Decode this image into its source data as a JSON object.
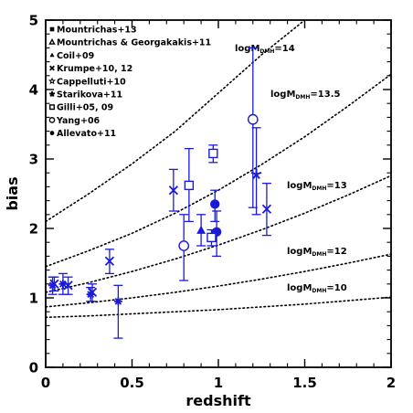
{
  "chart_data": {
    "type": "scatter",
    "xlabel": "redshift",
    "ylabel": "bias",
    "xlim": [
      0,
      2
    ],
    "ylim": [
      0,
      5
    ],
    "x_ticks": [
      "0",
      "0.5",
      "1",
      "1.5",
      "2"
    ],
    "y_ticks": [
      "0",
      "1",
      "2",
      "3",
      "4",
      "5"
    ],
    "legend_position": "top-left",
    "legend": [
      {
        "label": "Mountrichas+13",
        "marker": "filled-square"
      },
      {
        "label": "Mountrichas & Georgakakis+11",
        "marker": "open-triangle"
      },
      {
        "label": "Coil+09",
        "marker": "filled-triangle"
      },
      {
        "label": "Krumpe+10, 12",
        "marker": "x-cross"
      },
      {
        "label": "Cappelluti+10",
        "marker": "open-star"
      },
      {
        "label": "Starikova+11",
        "marker": "star"
      },
      {
        "label": "Gilli+05, 09",
        "marker": "open-square"
      },
      {
        "label": "Yang+06",
        "marker": "open-circle"
      },
      {
        "label": "Allevato+11",
        "marker": "asterisk"
      }
    ],
    "halo_mass_curves": [
      {
        "label": "logM",
        "sub": "DMH",
        "suffix": "=14",
        "points": [
          [
            0,
            2.1
          ],
          [
            0.25,
            2.5
          ],
          [
            0.5,
            2.93
          ],
          [
            0.75,
            3.4
          ],
          [
            1.0,
            3.95
          ],
          [
            1.25,
            4.5
          ],
          [
            1.5,
            5.0
          ]
        ]
      },
      {
        "label": "logM",
        "sub": "DMH",
        "suffix": "=13.5",
        "points": [
          [
            0,
            1.45
          ],
          [
            0.25,
            1.68
          ],
          [
            0.5,
            1.93
          ],
          [
            0.75,
            2.22
          ],
          [
            1.0,
            2.55
          ],
          [
            1.25,
            2.92
          ],
          [
            1.5,
            3.32
          ],
          [
            1.75,
            3.76
          ],
          [
            2.0,
            4.22
          ]
        ]
      },
      {
        "label": "logM",
        "sub": "DMH",
        "suffix": "=13",
        "points": [
          [
            0,
            1.08
          ],
          [
            0.25,
            1.22
          ],
          [
            0.5,
            1.38
          ],
          [
            0.75,
            1.56
          ],
          [
            1.0,
            1.76
          ],
          [
            1.25,
            1.98
          ],
          [
            1.5,
            2.22
          ],
          [
            1.75,
            2.48
          ],
          [
            2.0,
            2.76
          ]
        ]
      },
      {
        "label": "logM",
        "sub": "DMH",
        "suffix": "=12",
        "points": [
          [
            0,
            0.87
          ],
          [
            0.25,
            0.93
          ],
          [
            0.5,
            1.0
          ],
          [
            0.75,
            1.08
          ],
          [
            1.0,
            1.17
          ],
          [
            1.25,
            1.27
          ],
          [
            1.5,
            1.38
          ],
          [
            1.75,
            1.5
          ],
          [
            2.0,
            1.63
          ]
        ]
      },
      {
        "label": "logM",
        "sub": "DMH",
        "suffix": "=10",
        "points": [
          [
            0,
            0.72
          ],
          [
            0.25,
            0.74
          ],
          [
            0.5,
            0.77
          ],
          [
            0.75,
            0.8
          ],
          [
            1.0,
            0.83
          ],
          [
            1.25,
            0.87
          ],
          [
            1.5,
            0.91
          ],
          [
            1.75,
            0.96
          ],
          [
            2.0,
            1.01
          ]
        ]
      }
    ],
    "series": [
      {
        "name": "Mountrichas+13",
        "points": [
          {
            "x": 0.98,
            "y": 2.35,
            "lo": 2.1,
            "hi": 2.55
          },
          {
            "x": 0.99,
            "y": 1.95,
            "lo": 1.6,
            "hi": 2.25
          }
        ]
      },
      {
        "name": "Mountrichas & Georgakakis+11",
        "points": []
      },
      {
        "name": "Coil+09",
        "points": [
          {
            "x": 0.9,
            "y": 1.97,
            "lo": 1.75,
            "hi": 2.2
          }
        ]
      },
      {
        "name": "Krumpe+10, 12",
        "points": [
          {
            "x": 0.05,
            "y": 1.2,
            "lo": 1.1,
            "hi": 1.3
          },
          {
            "x": 0.13,
            "y": 1.18,
            "lo": 1.05,
            "hi": 1.3
          },
          {
            "x": 0.27,
            "y": 1.08,
            "lo": 0.95,
            "hi": 1.2
          },
          {
            "x": 0.37,
            "y": 1.53,
            "lo": 1.35,
            "hi": 1.7
          },
          {
            "x": 0.74,
            "y": 2.55,
            "lo": 2.25,
            "hi": 2.85
          },
          {
            "x": 1.28,
            "y": 2.28,
            "lo": 1.9,
            "hi": 2.65
          }
        ]
      },
      {
        "name": "Cappelluti+10",
        "points": []
      },
      {
        "name": "Starikova+11",
        "points": [
          {
            "x": 1.22,
            "y": 2.78,
            "lo": 2.2,
            "hi": 3.45
          }
        ]
      },
      {
        "name": "Gilli+05, 09",
        "points": [
          {
            "x": 0.83,
            "y": 2.62,
            "lo": 2.1,
            "hi": 3.15
          },
          {
            "x": 0.97,
            "y": 3.08,
            "lo": 2.95,
            "hi": 3.2
          },
          {
            "x": 0.96,
            "y": 1.87,
            "lo": 1.75,
            "hi": 1.98
          }
        ]
      },
      {
        "name": "Yang+06",
        "points": [
          {
            "x": 0.8,
            "y": 1.75,
            "lo": 1.25,
            "hi": 2.2
          },
          {
            "x": 1.2,
            "y": 3.57,
            "lo": 2.3,
            "hi": 4.6
          }
        ]
      },
      {
        "name": "Allevato+11",
        "points": [
          {
            "x": 0.04,
            "y": 1.18,
            "lo": 1.05,
            "hi": 1.3
          },
          {
            "x": 0.1,
            "y": 1.2,
            "lo": 1.05,
            "hi": 1.35
          },
          {
            "x": 0.26,
            "y": 1.05,
            "lo": 0.95,
            "hi": 1.15
          },
          {
            "x": 0.42,
            "y": 0.95,
            "lo": 0.42,
            "hi": 1.18
          }
        ]
      }
    ],
    "color": "#1a1adb"
  }
}
